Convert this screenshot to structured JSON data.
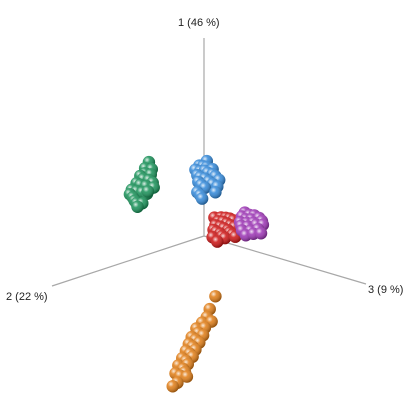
{
  "chart_data": {
    "type": "scatter",
    "projection": "3d",
    "title": "",
    "axes": [
      {
        "id": "1",
        "label": "1 (46 %)"
      },
      {
        "id": "2",
        "label": "2 (22 %)"
      },
      {
        "id": "3",
        "label": "3 (9 %)"
      }
    ],
    "legend": "none",
    "grid": false,
    "series": [
      {
        "color": "#148f55",
        "points": [
          [
            0.92,
            0.58,
            0.0
          ],
          [
            0.87,
            0.62,
            0.0
          ],
          [
            0.84,
            0.55,
            0.0
          ],
          [
            0.82,
            0.62,
            0.0
          ],
          [
            0.81,
            0.67,
            0.0
          ],
          [
            0.79,
            0.56,
            0.0
          ],
          [
            0.77,
            0.64,
            0.0
          ],
          [
            0.75,
            0.71,
            0.0
          ],
          [
            0.74,
            0.58,
            0.0
          ],
          [
            0.72,
            0.67,
            0.0
          ],
          [
            0.7,
            0.76,
            0.0
          ],
          [
            0.7,
            0.54,
            0.0
          ],
          [
            0.69,
            0.61,
            0.0
          ],
          [
            0.67,
            0.71,
            0.0
          ],
          [
            0.66,
            0.78,
            0.0
          ],
          [
            0.65,
            0.53,
            0.0
          ],
          [
            0.64,
            0.65,
            0.0
          ],
          [
            0.62,
            0.75,
            0.0
          ],
          [
            0.61,
            0.6,
            0.0
          ],
          [
            0.58,
            0.73,
            0.0
          ],
          [
            0.55,
            0.71,
            0.0
          ],
          [
            0.53,
            0.65,
            0.0
          ],
          [
            0.51,
            0.7,
            0.0
          ],
          [
            0.63,
            0.59,
            0.0
          ]
        ]
      },
      {
        "color": "#2f86d8",
        "points": [
          [
            0.74,
            -0.03,
            0.0
          ],
          [
            0.72,
            0.05,
            0.0
          ],
          [
            0.7,
            0.01,
            0.0
          ],
          [
            0.68,
            -0.03,
            0.0
          ],
          [
            0.69,
            0.09,
            0.0
          ],
          [
            0.66,
            0.04,
            0.0
          ],
          [
            0.65,
            -0.01,
            0.0
          ],
          [
            0.64,
            -0.09,
            0.0
          ],
          [
            0.63,
            0.07,
            0.0
          ],
          [
            0.62,
            -0.04,
            0.0
          ],
          [
            0.6,
            0.04,
            0.0
          ],
          [
            0.59,
            -0.09,
            0.0
          ],
          [
            0.57,
            -0.01,
            0.0
          ],
          [
            0.56,
            0.06,
            0.0
          ],
          [
            0.56,
            -0.12,
            0.0
          ],
          [
            0.53,
            -0.05,
            0.0
          ],
          [
            0.52,
            0.03,
            0.0
          ],
          [
            0.51,
            -0.16,
            0.0
          ],
          [
            0.49,
            -0.09,
            0.0
          ],
          [
            0.48,
            -0.01,
            0.0
          ],
          [
            0.46,
            0.07,
            0.0
          ],
          [
            0.45,
            -0.14,
            0.0
          ],
          [
            0.42,
            0.04,
            0.0
          ],
          [
            0.4,
            -0.12,
            0.0
          ],
          [
            0.38,
            0.02,
            0.0
          ]
        ]
      },
      {
        "color": "#cc1111",
        "points": [
          [
            0.15,
            -0.11,
            0.0
          ],
          [
            0.13,
            -0.18,
            0.0
          ],
          [
            0.11,
            -0.23,
            0.0
          ],
          [
            0.1,
            -0.15,
            0.0
          ],
          [
            0.09,
            -0.27,
            0.0
          ],
          [
            0.08,
            -0.2,
            0.0
          ],
          [
            0.07,
            -0.12,
            0.0
          ],
          [
            0.06,
            -0.31,
            0.0
          ],
          [
            0.05,
            -0.24,
            0.0
          ],
          [
            0.04,
            -0.17,
            0.0
          ],
          [
            0.03,
            -0.1,
            0.0
          ],
          [
            0.02,
            -0.28,
            0.0
          ],
          [
            0.01,
            -0.21,
            0.0
          ],
          [
            0.0,
            -0.13,
            0.0
          ],
          [
            -0.01,
            -0.32,
            0.0
          ],
          [
            -0.02,
            -0.25,
            0.0
          ],
          [
            -0.03,
            -0.17,
            0.0
          ],
          [
            -0.04,
            -0.09,
            0.0
          ],
          [
            -0.05,
            -0.27,
            0.0
          ],
          [
            -0.06,
            -0.19,
            0.0
          ],
          [
            -0.08,
            -0.3,
            0.0
          ],
          [
            -0.09,
            -0.22,
            0.0
          ],
          [
            -0.1,
            -0.14,
            0.0
          ],
          [
            -0.11,
            -0.33,
            0.0
          ],
          [
            0.05,
            -0.38,
            0.0
          ],
          [
            0.0,
            -0.44,
            0.0
          ]
        ]
      },
      {
        "color": "#9b32b4",
        "points": [
          [
            0.1,
            -0.43,
            0.0
          ],
          [
            0.07,
            -0.4,
            0.0
          ],
          [
            0.06,
            -0.48,
            0.0
          ],
          [
            0.04,
            -0.53,
            0.0
          ],
          [
            0.03,
            -0.44,
            0.0
          ],
          [
            0.02,
            -0.38,
            0.0
          ],
          [
            0.01,
            -0.5,
            0.0
          ],
          [
            0.0,
            -0.58,
            0.0
          ],
          [
            -0.01,
            -0.45,
            0.0
          ],
          [
            -0.02,
            -0.39,
            0.0
          ],
          [
            -0.03,
            -0.52,
            0.0
          ],
          [
            -0.04,
            -0.61,
            0.0
          ],
          [
            -0.05,
            -0.46,
            0.0
          ],
          [
            -0.06,
            -0.55,
            0.0
          ],
          [
            -0.07,
            -0.4,
            0.0
          ],
          [
            -0.08,
            -0.62,
            0.0
          ],
          [
            -0.1,
            -0.49,
            0.0
          ],
          [
            -0.11,
            -0.57,
            0.0
          ],
          [
            -0.13,
            -0.44,
            0.0
          ],
          [
            -0.14,
            -0.52,
            0.0
          ],
          [
            -0.16,
            -0.6,
            0.0
          ]
        ]
      },
      {
        "color": "#e07b12",
        "points": [
          [
            -0.64,
            -0.12,
            0.0
          ],
          [
            -0.75,
            -0.06,
            0.0
          ],
          [
            -0.82,
            -0.03,
            0.0
          ],
          [
            -0.86,
            0.02,
            0.0
          ],
          [
            -0.88,
            -0.08,
            0.0
          ],
          [
            -0.9,
            0.08,
            0.0
          ],
          [
            -0.92,
            -0.01,
            0.0
          ],
          [
            -0.95,
            0.06,
            0.0
          ],
          [
            -0.97,
            0.13,
            0.0
          ],
          [
            -0.99,
            0.01,
            0.0
          ],
          [
            -1.01,
            0.09,
            0.0
          ],
          [
            -1.03,
            0.16,
            0.0
          ],
          [
            -1.05,
            0.05,
            0.0
          ],
          [
            -1.07,
            0.12,
            0.0
          ],
          [
            -1.09,
            0.19,
            0.0
          ],
          [
            -1.11,
            0.09,
            0.0
          ],
          [
            -1.13,
            0.15,
            0.0
          ],
          [
            -1.15,
            0.23,
            0.0
          ],
          [
            -1.17,
            0.12,
            0.0
          ],
          [
            -1.19,
            0.19,
            0.0
          ],
          [
            -1.21,
            0.27,
            0.0
          ],
          [
            -1.23,
            0.17,
            0.0
          ],
          [
            -1.26,
            0.22,
            0.0
          ],
          [
            -1.28,
            0.3,
            0.0
          ],
          [
            -1.3,
            0.2,
            0.0
          ],
          [
            -1.32,
            0.25,
            0.0
          ],
          [
            -1.35,
            0.18,
            0.0
          ],
          [
            -1.38,
            0.28,
            0.0
          ],
          [
            -1.4,
            0.33,
            0.0
          ]
        ]
      }
    ]
  }
}
